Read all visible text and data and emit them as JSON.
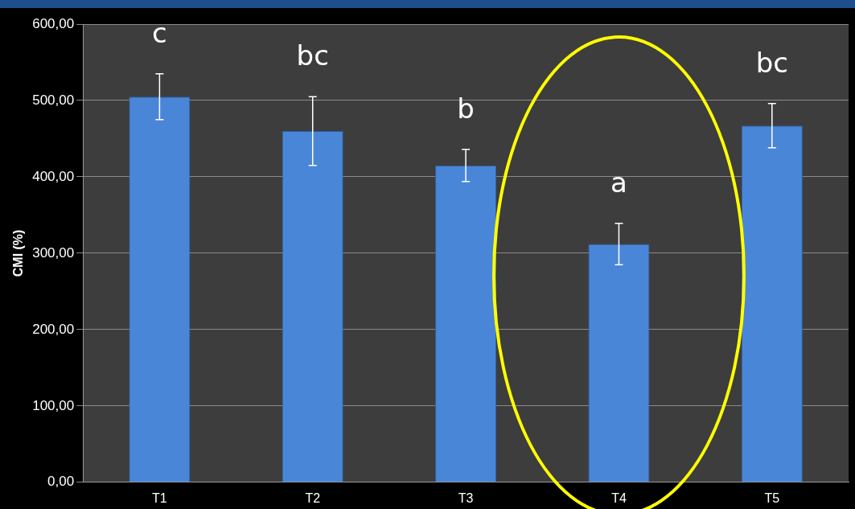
{
  "chart_data": {
    "type": "bar",
    "ylabel": "CMI (%)",
    "categories": [
      "T1",
      "T2",
      "T3",
      "T4",
      "T5"
    ],
    "values": [
      505,
      460,
      415,
      312,
      467
    ],
    "errors": [
      30,
      45,
      21,
      27,
      29
    ],
    "color": "#4a86d8",
    "ylim": [
      0,
      600
    ],
    "yticks": [
      {
        "value": 0,
        "label": "0,00"
      },
      {
        "value": 100,
        "label": "100,00"
      },
      {
        "value": 200,
        "label": "200,00"
      },
      {
        "value": 300,
        "label": "300,00"
      },
      {
        "value": 400,
        "label": "400,00"
      },
      {
        "value": 500,
        "label": "500,00"
      },
      {
        "value": 600,
        "label": "600,00"
      }
    ],
    "grid": "y",
    "legend": false,
    "annotations": [
      "c",
      "bc",
      "b",
      "a",
      "bc"
    ]
  }
}
